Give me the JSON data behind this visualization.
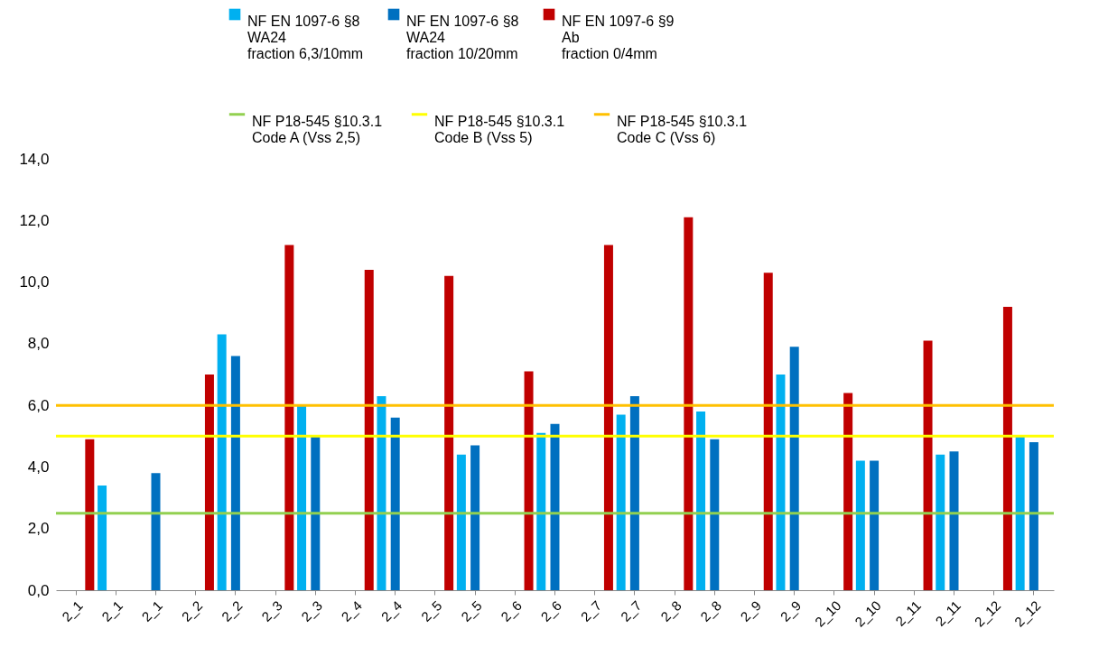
{
  "chart_data": {
    "type": "bar",
    "categories": [
      "2_1",
      "2_1",
      "2_1",
      "2_2",
      "2_2",
      "2_3",
      "2_3",
      "2_4",
      "2_4",
      "2_5",
      "2_5",
      "2_6",
      "2_6",
      "2_7",
      "2_7",
      "2_8",
      "2_8",
      "2_9",
      "2_9",
      "2_10",
      "2_10",
      "2_11",
      "2_11",
      "2_12",
      "2_12"
    ],
    "series": [
      {
        "name": "NF EN 1097-6 §8\nWA24\nfraction 6,3/10mm",
        "color": "#00b0f0",
        "values": [
          null,
          3.4,
          null,
          null,
          8.3,
          null,
          6.0,
          null,
          6.3,
          null,
          4.4,
          null,
          5.1,
          null,
          5.7,
          null,
          5.8,
          null,
          7.0,
          null,
          4.2,
          null,
          4.4,
          null,
          5.0
        ]
      },
      {
        "name": "NF EN 1097-6 §8\nWA24\nfraction 10/20mm",
        "color": "#0070c0",
        "values": [
          null,
          null,
          3.8,
          null,
          7.6,
          null,
          5.0,
          null,
          5.6,
          null,
          4.7,
          null,
          5.4,
          null,
          6.3,
          null,
          4.9,
          null,
          7.9,
          null,
          4.2,
          null,
          4.5,
          null,
          4.8
        ]
      },
      {
        "name": "NF EN 1097-6 §9\nAb\nfraction 0/4mm",
        "color": "#c00000",
        "values": [
          4.9,
          null,
          null,
          7.0,
          null,
          11.2,
          null,
          10.4,
          null,
          10.2,
          null,
          7.1,
          null,
          11.2,
          null,
          12.1,
          null,
          10.3,
          null,
          6.4,
          null,
          8.1,
          null,
          9.2,
          null
        ]
      }
    ],
    "ref_lines": [
      {
        "axis": "y",
        "value": 2.5,
        "label": "NF P18-545 §10.3.1\nCode A (Vss 2,5)",
        "color": "#92d050"
      },
      {
        "axis": "y",
        "value": 5,
        "label": "NF P18-545 §10.3.1\nCode B (Vss 5)",
        "color": "#ffff00"
      },
      {
        "axis": "y",
        "value": 6,
        "label": "NF P18-545 §10.3.1\nCode C (Vss 6)",
        "color": "#ffc000"
      }
    ],
    "ylim": [
      0,
      14
    ],
    "yticks": [
      {
        "value": 0,
        "label": "0,0"
      },
      {
        "value": 2,
        "label": "2,0"
      },
      {
        "value": 4,
        "label": "4,0"
      },
      {
        "value": 6,
        "label": "6,0"
      },
      {
        "value": 8,
        "label": "8,0"
      },
      {
        "value": 10,
        "label": "10,0"
      },
      {
        "value": 12,
        "label": "12,0"
      },
      {
        "value": 14,
        "label": "14,0"
      }
    ],
    "grid": false,
    "legend": "top"
  }
}
